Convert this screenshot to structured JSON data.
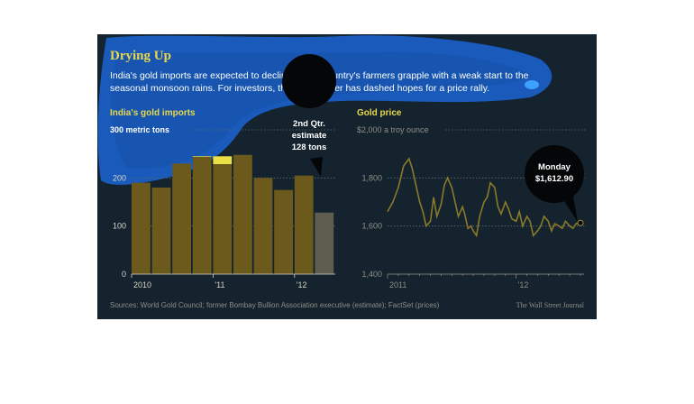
{
  "header": {
    "title": "Drying Up",
    "subtitle_line1": "India's gold imports are expected to decline as the country's farmers grapple with a weak start to the",
    "subtitle_line2": "seasonal monsoon rains. For investors, the dry weather has dashed hopes for a price rally."
  },
  "footer": {
    "sources": "Sources: World Gold Council; former Bombay Bullion Association executive (estimate); FactSet (prices)",
    "credit": "The Wall Street Journal"
  },
  "colors": {
    "panel_bg": "#14232e",
    "bar": "#6b5a1c",
    "estimate_bar": "#5f5d50",
    "highlight_yellow": "#f2e84a",
    "title_yellow": "#e8d84e",
    "line": "#8a7a2a",
    "overlay_blue": "#1a5fc8",
    "callout_bg": "#050607",
    "text_light": "#d8d6c8",
    "text_muted": "#8f8e86"
  },
  "chart_data": [
    {
      "type": "bar",
      "title": "India's gold imports",
      "unit_label": "300 metric tons",
      "ylim": [
        0,
        300
      ],
      "yticks": [
        {
          "v": 0,
          "label": "0"
        },
        {
          "v": 100,
          "label": "100"
        },
        {
          "v": 200,
          "label": "200"
        },
        {
          "v": 300,
          "label": "300 metric tons"
        }
      ],
      "quarter_labels": [
        {
          "i": 0,
          "label": "2010"
        },
        {
          "i": 4,
          "label": "'11"
        },
        {
          "i": 8,
          "label": "'12"
        }
      ],
      "values": [
        190,
        180,
        230,
        245,
        245,
        248,
        200,
        175,
        205,
        128
      ],
      "estimate_index": 9,
      "callout": {
        "lines": [
          "2nd Qtr.",
          "estimate",
          "128 tons"
        ]
      }
    },
    {
      "type": "line",
      "title": "Gold price",
      "unit_label": "$2,000 a troy ounce",
      "ylim": [
        1400,
        2000
      ],
      "yticks": [
        {
          "v": 1400,
          "label": "1,400"
        },
        {
          "v": 1600,
          "label": "1,600"
        },
        {
          "v": 1800,
          "label": "1,800"
        },
        {
          "v": 2000,
          "label": "$2,000 a troy ounce"
        }
      ],
      "x_start": "2011-01",
      "x_end": "2012-07",
      "x_labels": [
        {
          "month": 0,
          "label": "2011"
        },
        {
          "month": 12,
          "label": "'12"
        }
      ],
      "months": [
        0,
        0.5,
        1,
        1.5,
        2,
        2.3,
        2.6,
        3,
        3.3,
        3.6,
        4,
        4.3,
        4.6,
        5,
        5.3,
        5.6,
        6,
        6.3,
        6.6,
        7,
        7.2,
        7.5,
        7.8,
        8,
        8.3,
        8.6,
        9,
        9.3,
        9.6,
        10,
        10.3,
        10.6,
        11,
        11.3,
        11.6,
        12,
        12.3,
        12.6,
        13,
        13.3,
        13.6,
        14,
        14.3,
        14.6,
        15,
        15.3,
        15.6,
        16,
        16.3,
        16.6,
        17,
        17.3,
        17.6,
        18
      ],
      "prices": [
        1660,
        1700,
        1760,
        1850,
        1880,
        1840,
        1780,
        1700,
        1660,
        1600,
        1620,
        1720,
        1640,
        1690,
        1770,
        1800,
        1760,
        1700,
        1640,
        1680,
        1650,
        1590,
        1600,
        1580,
        1560,
        1640,
        1700,
        1720,
        1780,
        1760,
        1680,
        1650,
        1700,
        1670,
        1630,
        1620,
        1660,
        1600,
        1640,
        1620,
        1560,
        1580,
        1600,
        1640,
        1620,
        1580,
        1610,
        1600,
        1590,
        1620,
        1600,
        1590,
        1610,
        1612.9
      ],
      "callout": {
        "lines": [
          "Monday",
          "$1,612.90"
        ]
      }
    }
  ]
}
